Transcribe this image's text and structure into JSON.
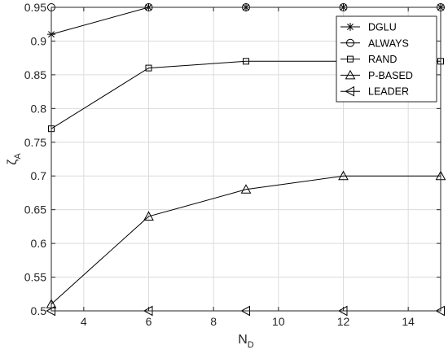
{
  "chart_data": {
    "type": "line",
    "xlabel": "N",
    "xlabel_sub": "D",
    "ylabel": "ζ",
    "ylabel_sub": "A",
    "xlim": [
      3,
      15
    ],
    "ylim": [
      0.5,
      0.95
    ],
    "xticks": [
      4,
      6,
      8,
      10,
      12,
      14
    ],
    "yticks": [
      0.5,
      0.55,
      0.6,
      0.65,
      0.7,
      0.75,
      0.8,
      0.85,
      0.9,
      0.95
    ],
    "xtick_labels": [
      "4",
      "6",
      "8",
      "10",
      "12",
      "14"
    ],
    "ytick_labels": [
      "0.5",
      "0.55",
      "0.6",
      "0.65",
      "0.7",
      "0.75",
      "0.8",
      "0.85",
      "0.9",
      "0.95"
    ],
    "grid": true,
    "legend_position": "top-right",
    "series": [
      {
        "name": "DGLU",
        "marker": "asterisk",
        "x": [
          3,
          6,
          9,
          12,
          15
        ],
        "y": [
          0.91,
          0.95,
          0.95,
          0.95,
          0.95
        ]
      },
      {
        "name": "ALWAYS",
        "marker": "circle",
        "x": [
          3,
          6,
          9,
          12,
          15
        ],
        "y": [
          0.95,
          0.95,
          0.95,
          0.95,
          0.95
        ]
      },
      {
        "name": "RAND",
        "marker": "square",
        "x": [
          3,
          6,
          9,
          12,
          15
        ],
        "y": [
          0.77,
          0.86,
          0.87,
          0.87,
          0.87
        ]
      },
      {
        "name": "P-BASED",
        "marker": "triangle-up",
        "x": [
          3,
          6,
          9,
          12,
          15
        ],
        "y": [
          0.51,
          0.64,
          0.68,
          0.7,
          0.7
        ]
      },
      {
        "name": "LEADER",
        "marker": "triangle-left",
        "x": [
          3,
          6,
          9,
          12,
          15
        ],
        "y": [
          0.5,
          0.5,
          0.5,
          0.5,
          0.5
        ]
      }
    ]
  }
}
